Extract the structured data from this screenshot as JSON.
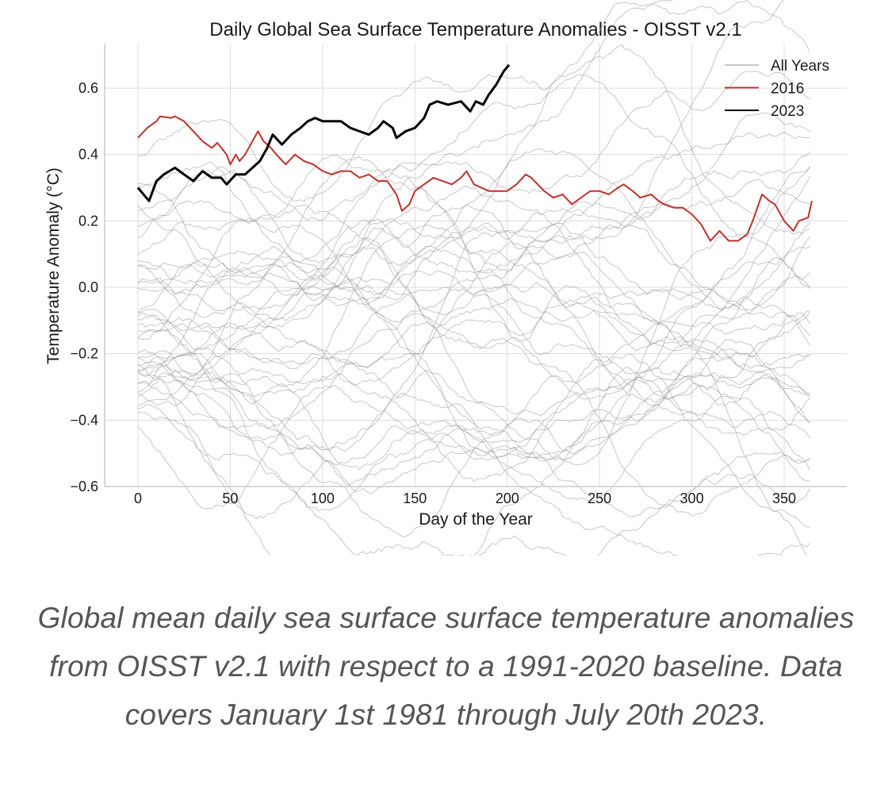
{
  "chart_data": {
    "type": "line",
    "title": "Daily Global Sea Surface Temperature Anomalies - OISST v2.1",
    "xlabel": "Day of the Year",
    "ylabel": "Temperature Anomaly (°C)",
    "xlim": [
      -18,
      384
    ],
    "ylim": [
      -0.6,
      0.72
    ],
    "xticks": [
      0,
      50,
      100,
      150,
      200,
      250,
      300,
      350
    ],
    "xtick_labels": [
      "0",
      "50",
      "100",
      "150",
      "200",
      "250",
      "300",
      "350"
    ],
    "yticks": [
      -0.6,
      -0.4,
      -0.2,
      0.0,
      0.2,
      0.4,
      0.6
    ],
    "ytick_labels": [
      "−0.6",
      "−0.4",
      "−0.2",
      "0.0",
      "0.2",
      "0.4",
      "0.6"
    ],
    "grid": true,
    "legend_position": "top-right",
    "legend": [
      {
        "label": "All Years",
        "color": "#b3b3b3"
      },
      {
        "label": "2016",
        "color": "#c0302b"
      },
      {
        "label": "2023",
        "color": "#000000"
      }
    ],
    "background_years": {
      "name": "All Years",
      "color": "#999999",
      "count": 40,
      "day_range": [
        0,
        365
      ],
      "baseline_levels": [
        0.38,
        0.34,
        0.3,
        0.27,
        0.24,
        0.21,
        0.18,
        0.12,
        0.09,
        0.06,
        0.04,
        0.02,
        0.0,
        -0.02,
        -0.04,
        -0.06,
        -0.08,
        -0.1,
        -0.12,
        -0.14,
        -0.16,
        -0.18,
        -0.19,
        -0.2,
        -0.21,
        -0.22,
        -0.23,
        -0.24,
        -0.25,
        -0.26,
        -0.27,
        -0.28,
        -0.29,
        -0.3,
        -0.32,
        -0.34,
        -0.36,
        -0.38,
        -0.4,
        -0.43
      ],
      "note": "Approximate per-year mean anomaly levels; individual daily traces not individually legible"
    },
    "series": [
      {
        "name": "2016",
        "color": "#c0302b",
        "x": [
          0,
          5,
          10,
          12,
          18,
          20,
          25,
          30,
          35,
          40,
          43,
          48,
          50,
          53,
          55,
          58,
          62,
          65,
          68,
          72,
          75,
          80,
          85,
          90,
          95,
          100,
          105,
          110,
          115,
          120,
          125,
          130,
          135,
          140,
          143,
          147,
          150,
          155,
          160,
          165,
          170,
          175,
          178,
          182,
          190,
          195,
          200,
          205,
          210,
          213,
          220,
          225,
          230,
          235,
          240,
          245,
          250,
          255,
          260,
          263,
          268,
          272,
          278,
          282,
          285,
          290,
          295,
          300,
          305,
          310,
          315,
          320,
          325,
          330,
          333,
          338,
          342,
          345,
          350,
          355,
          358,
          363,
          365
        ],
        "y": [
          0.45,
          0.48,
          0.5,
          0.515,
          0.51,
          0.515,
          0.5,
          0.47,
          0.44,
          0.42,
          0.435,
          0.4,
          0.37,
          0.4,
          0.38,
          0.4,
          0.44,
          0.47,
          0.44,
          0.42,
          0.4,
          0.37,
          0.4,
          0.38,
          0.37,
          0.35,
          0.34,
          0.35,
          0.35,
          0.33,
          0.34,
          0.32,
          0.32,
          0.28,
          0.23,
          0.25,
          0.29,
          0.31,
          0.33,
          0.32,
          0.31,
          0.33,
          0.35,
          0.31,
          0.29,
          0.29,
          0.29,
          0.31,
          0.34,
          0.33,
          0.29,
          0.27,
          0.28,
          0.25,
          0.27,
          0.29,
          0.29,
          0.28,
          0.3,
          0.31,
          0.29,
          0.27,
          0.28,
          0.26,
          0.25,
          0.24,
          0.24,
          0.22,
          0.19,
          0.14,
          0.17,
          0.14,
          0.14,
          0.16,
          0.2,
          0.28,
          0.26,
          0.25,
          0.2,
          0.17,
          0.2,
          0.21,
          0.26
        ]
      },
      {
        "name": "2023",
        "color": "#000000",
        "x": [
          0,
          3,
          6,
          10,
          14,
          20,
          25,
          30,
          35,
          40,
          45,
          48,
          53,
          58,
          62,
          66,
          70,
          73,
          78,
          83,
          88,
          92,
          96,
          100,
          105,
          110,
          115,
          120,
          125,
          130,
          133,
          138,
          140,
          145,
          150,
          155,
          158,
          162,
          168,
          175,
          180,
          183,
          187,
          190,
          194,
          198,
          201
        ],
        "y": [
          0.3,
          0.28,
          0.26,
          0.32,
          0.34,
          0.36,
          0.34,
          0.32,
          0.35,
          0.33,
          0.33,
          0.31,
          0.34,
          0.34,
          0.36,
          0.38,
          0.42,
          0.46,
          0.43,
          0.46,
          0.48,
          0.5,
          0.51,
          0.5,
          0.5,
          0.5,
          0.48,
          0.47,
          0.46,
          0.48,
          0.5,
          0.48,
          0.45,
          0.47,
          0.48,
          0.51,
          0.55,
          0.56,
          0.55,
          0.56,
          0.53,
          0.56,
          0.55,
          0.58,
          0.61,
          0.65,
          0.67
        ]
      }
    ]
  },
  "caption": "Global mean daily sea surface surface temperature anomalies from OISST v2.1 with respect to a 1991-2020 baseline. Data covers January 1st 1981 through July 20th 2023."
}
